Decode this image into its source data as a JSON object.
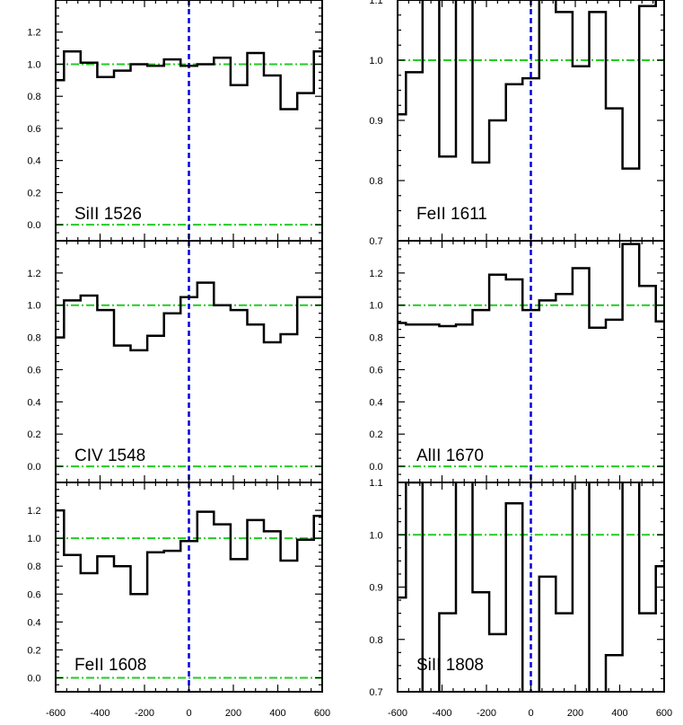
{
  "chart_data": [
    {
      "type": "line",
      "step": true,
      "label": "SiII 1526",
      "xlim": [
        -600,
        600
      ],
      "ylim": [
        -0.1,
        1.4
      ],
      "yticks": [
        0.0,
        0.2,
        0.4,
        0.6,
        0.8,
        1.0,
        1.2
      ],
      "ytick_labels": [
        "0.0",
        "0.2",
        "0.4",
        "0.6",
        "0.8",
        "1.0",
        "1.2"
      ],
      "hlines": [
        0.0,
        1.0
      ],
      "vline": 0,
      "x": [
        -600,
        -525,
        -450,
        -375,
        -300,
        -225,
        -150,
        -75,
        0,
        75,
        150,
        225,
        300,
        375,
        450,
        525,
        600
      ],
      "y": [
        0.9,
        1.08,
        1.01,
        0.92,
        0.96,
        1.0,
        0.99,
        1.03,
        0.99,
        1.0,
        1.04,
        0.87,
        1.07,
        0.93,
        0.72,
        0.82,
        1.08
      ]
    },
    {
      "type": "line",
      "step": true,
      "label": "FeII 1611",
      "xlim": [
        -600,
        600
      ],
      "ylim": [
        0.7,
        1.1
      ],
      "yticks": [
        0.7,
        0.8,
        0.9,
        1.0,
        1.1
      ],
      "ytick_labels": [
        "0.7",
        "0.8",
        "0.9",
        "1.0",
        "1.1"
      ],
      "hlines": [
        1.0
      ],
      "vline": 0,
      "x": [
        -600,
        -525,
        -450,
        -375,
        -300,
        -225,
        -150,
        -75,
        0,
        75,
        150,
        225,
        300,
        375,
        450,
        525,
        600
      ],
      "y": [
        0.91,
        0.98,
        1.15,
        0.84,
        1.15,
        0.83,
        0.9,
        0.96,
        0.97,
        1.14,
        1.08,
        0.99,
        1.08,
        0.92,
        0.82,
        1.09,
        1.15
      ]
    },
    {
      "type": "line",
      "step": true,
      "label": "CIV 1548",
      "xlim": [
        -600,
        600
      ],
      "ylim": [
        -0.1,
        1.4
      ],
      "yticks": [
        0.0,
        0.2,
        0.4,
        0.6,
        0.8,
        1.0,
        1.2
      ],
      "ytick_labels": [
        "0.0",
        "0.2",
        "0.4",
        "0.6",
        "0.8",
        "1.0",
        "1.2"
      ],
      "hlines": [
        0.0,
        1.0
      ],
      "vline": 0,
      "x": [
        -600,
        -525,
        -450,
        -375,
        -300,
        -225,
        -150,
        -75,
        0,
        75,
        150,
        225,
        300,
        375,
        450,
        525,
        600
      ],
      "y": [
        0.8,
        1.03,
        1.06,
        0.97,
        0.75,
        0.72,
        0.81,
        0.95,
        1.05,
        1.14,
        1.0,
        0.97,
        0.88,
        0.77,
        0.82,
        1.05,
        1.05
      ]
    },
    {
      "type": "line",
      "step": true,
      "label": "AlII 1670",
      "xlim": [
        -600,
        600
      ],
      "ylim": [
        -0.1,
        1.4
      ],
      "yticks": [
        0.0,
        0.2,
        0.4,
        0.6,
        0.8,
        1.0,
        1.2
      ],
      "ytick_labels": [
        "0.0",
        "0.2",
        "0.4",
        "0.6",
        "0.8",
        "1.0",
        "1.2"
      ],
      "hlines": [
        0.0,
        1.0
      ],
      "vline": 0,
      "x": [
        -600,
        -525,
        -450,
        -375,
        -300,
        -225,
        -150,
        -75,
        0,
        75,
        150,
        225,
        300,
        375,
        450,
        525,
        600
      ],
      "y": [
        0.89,
        0.88,
        0.88,
        0.87,
        0.88,
        0.97,
        1.19,
        1.16,
        0.97,
        1.03,
        1.07,
        1.23,
        0.86,
        0.91,
        1.38,
        1.12,
        0.9
      ]
    },
    {
      "type": "line",
      "step": true,
      "label": "FeII 1608",
      "xlim": [
        -600,
        600
      ],
      "ylim": [
        -0.1,
        1.4
      ],
      "yticks": [
        0.0,
        0.2,
        0.4,
        0.6,
        0.8,
        1.0,
        1.2
      ],
      "ytick_labels": [
        "0.0",
        "0.2",
        "0.4",
        "0.6",
        "0.8",
        "1.0",
        "1.2"
      ],
      "hlines": [
        0.0,
        1.0
      ],
      "vline": 0,
      "x": [
        -600,
        -525,
        -450,
        -375,
        -300,
        -225,
        -150,
        -75,
        0,
        75,
        150,
        225,
        300,
        375,
        450,
        525,
        600
      ],
      "y": [
        1.2,
        0.88,
        0.75,
        0.87,
        0.8,
        0.6,
        0.9,
        0.91,
        0.98,
        1.19,
        1.1,
        0.85,
        1.13,
        1.05,
        0.84,
        0.99,
        1.16
      ]
    },
    {
      "type": "line",
      "step": true,
      "label": "SiII 1808",
      "xlim": [
        -600,
        600
      ],
      "ylim": [
        0.7,
        1.1
      ],
      "yticks": [
        0.7,
        0.8,
        0.9,
        1.0,
        1.1
      ],
      "ytick_labels": [
        "0.7",
        "0.8",
        "0.9",
        "1.0",
        "1.1"
      ],
      "hlines": [
        1.0
      ],
      "vline": 0,
      "x": [
        -600,
        -525,
        -450,
        -375,
        -300,
        -225,
        -150,
        -75,
        0,
        75,
        150,
        225,
        300,
        375,
        450,
        525,
        600
      ],
      "y": [
        0.88,
        1.1,
        0.65,
        0.85,
        1.15,
        0.89,
        0.81,
        1.06,
        0.65,
        0.92,
        0.85,
        1.15,
        0.65,
        0.77,
        1.15,
        0.85,
        0.94
      ]
    }
  ],
  "xticks": [
    -600,
    -400,
    -200,
    0,
    200,
    400,
    600
  ],
  "xtick_labels": [
    "-600",
    "-400",
    "-200",
    "0",
    "200",
    "400",
    "600"
  ],
  "colors": {
    "spectrum": "#000000",
    "reference_line": "#22cc22",
    "zero_velocity": "#0000dd",
    "frame": "#000000"
  }
}
